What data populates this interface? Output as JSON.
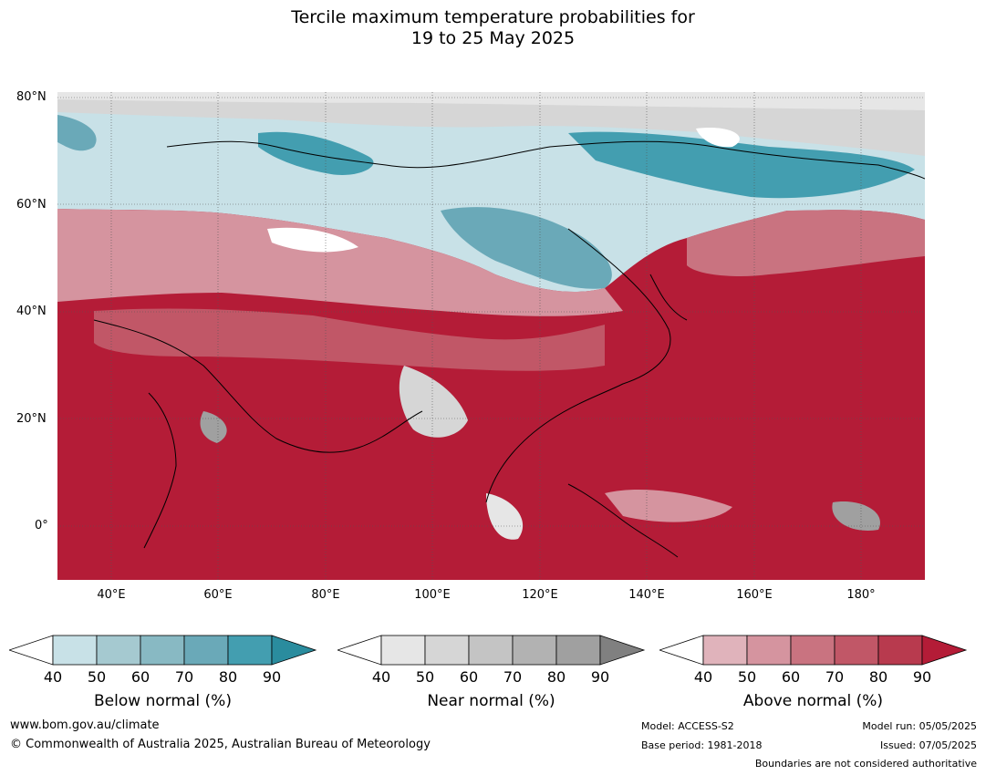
{
  "title_line1": "Tercile maximum temperature probabilities for",
  "title_line2": "19 to 25 May 2025",
  "lat_labels": [
    "80°N",
    "60°N",
    "40°N",
    "20°N",
    "0°"
  ],
  "lon_labels": [
    "40°E",
    "60°E",
    "80°E",
    "100°E",
    "120°E",
    "140°E",
    "160°E",
    "180°"
  ],
  "colorbars": [
    {
      "title": "Below normal (%)",
      "ticks": [
        "40",
        "50",
        "60",
        "70",
        "80",
        "90"
      ],
      "colors": [
        "#ffffff",
        "#c8e1e7",
        "#a5c9d0",
        "#88b9c3",
        "#6aa9b8",
        "#439eb0",
        "#2a8c9e"
      ]
    },
    {
      "title": "Near normal (%)",
      "ticks": [
        "40",
        "50",
        "60",
        "70",
        "80",
        "90"
      ],
      "colors": [
        "#ffffff",
        "#e6e6e6",
        "#d6d6d6",
        "#c4c4c4",
        "#b2b2b2",
        "#a0a0a0",
        "#808080"
      ]
    },
    {
      "title": "Above normal (%)",
      "ticks": [
        "40",
        "50",
        "60",
        "70",
        "80",
        "90"
      ],
      "colors": [
        "#ffffff",
        "#e0b3bb",
        "#d5949f",
        "#c97380",
        "#c15767",
        "#b83a4e",
        "#b41c37"
      ]
    }
  ],
  "footer": {
    "website": "www.bom.gov.au/climate",
    "copyright": "© Commonwealth of Australia 2025, Australian Bureau of Meteorology",
    "model": "Model: ACCESS-S2",
    "base_period": "Base period: 1981-2018",
    "model_run": "Model run: 05/05/2025",
    "issued": "Issued: 07/05/2025",
    "disclaimer": "Boundaries are not considered authoritative"
  }
}
